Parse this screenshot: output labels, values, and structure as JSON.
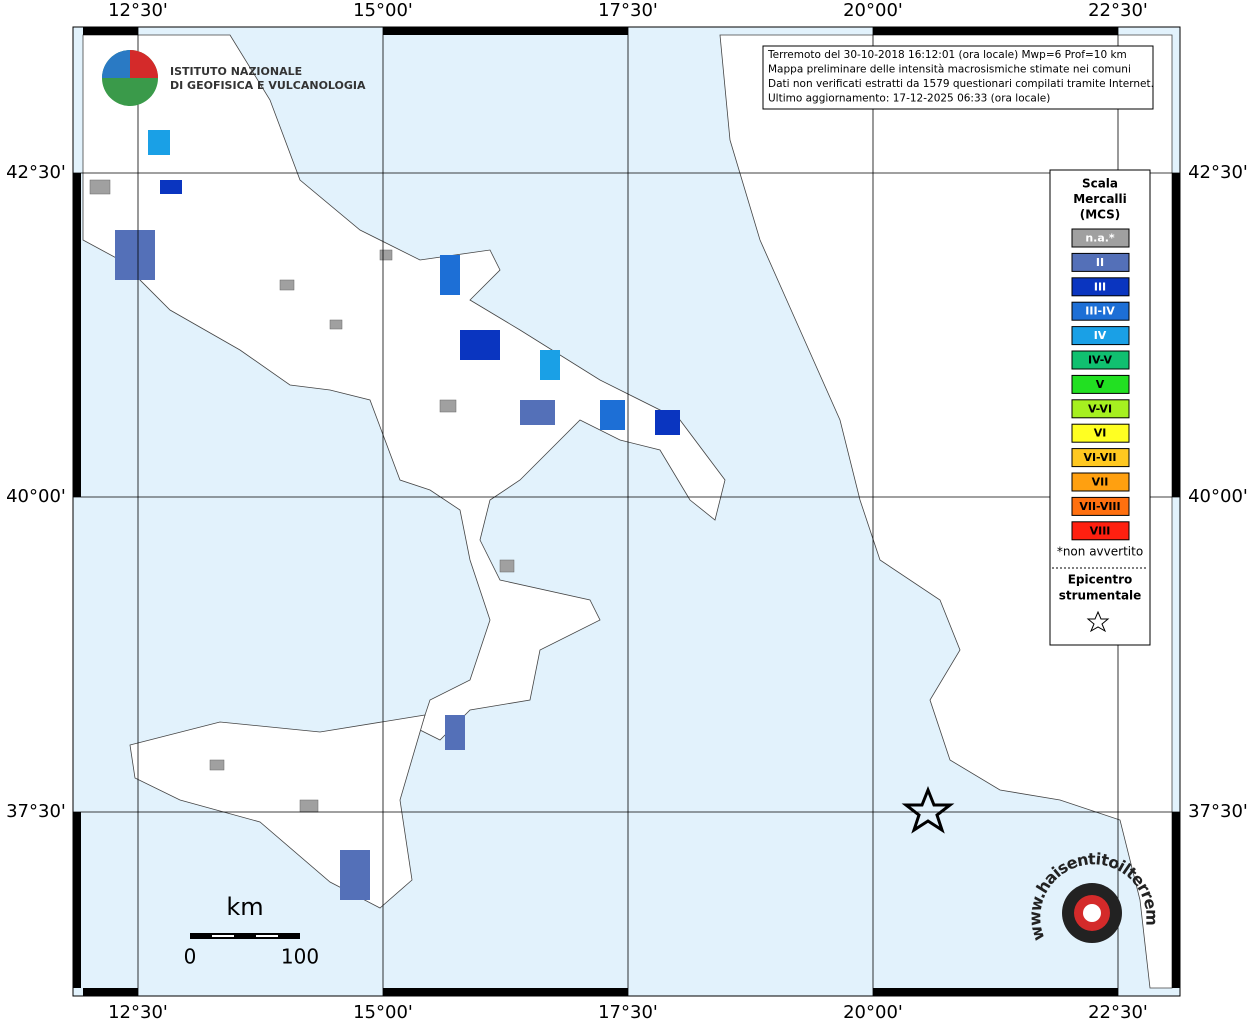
{
  "header": {
    "institute": [
      "ISTITUTO NAZIONALE",
      "DI GEOFISICA E VULCANOLOGIA"
    ],
    "info": [
      "Terremoto del 30-10-2018 16:12:01 (ora locale) Mwp=6 Prof=10 km",
      "Mappa preliminare delle intensità macrosismiche stimate nei comuni",
      "Dati non verificati estratti da 1579 questionari compilati tramite Internet.",
      "Ultimo aggiornamento: 17-12-2025 06:33 (ora locale)"
    ]
  },
  "grid": {
    "lon_labels": [
      "12°30'",
      "15°00'",
      "17°30'",
      "20°00'",
      "22°30'"
    ],
    "lat_labels": [
      "42°30'",
      "40°00'",
      "37°30'"
    ]
  },
  "legend": {
    "title": [
      "Scala",
      "Mercalli",
      "(MCS)"
    ],
    "items": [
      {
        "label": "n.a.*",
        "color": "#a0a0a0"
      },
      {
        "label": "II",
        "color": "#5470b8"
      },
      {
        "label": "III",
        "color": "#0a35c0"
      },
      {
        "label": "III-IV",
        "color": "#1d6fd6"
      },
      {
        "label": "IV",
        "color": "#1aa0e6"
      },
      {
        "label": "IV-V",
        "color": "#10c070"
      },
      {
        "label": "V",
        "color": "#22e022"
      },
      {
        "label": "V-VI",
        "color": "#a6f020"
      },
      {
        "label": "VI",
        "color": "#ffff22"
      },
      {
        "label": "VI-VII",
        "color": "#ffc820"
      },
      {
        "label": "VII",
        "color": "#ffa010"
      },
      {
        "label": "VII-VIII",
        "color": "#ff7010"
      },
      {
        "label": "VIII",
        "color": "#ff2010"
      }
    ],
    "note": "*non avvertito",
    "epicenter": [
      "Epicentro",
      "strumentale"
    ]
  },
  "scale": {
    "unit": "km",
    "labels": [
      "0",
      "100"
    ]
  },
  "watermark": "www.haisentitoilterremoto.it"
}
